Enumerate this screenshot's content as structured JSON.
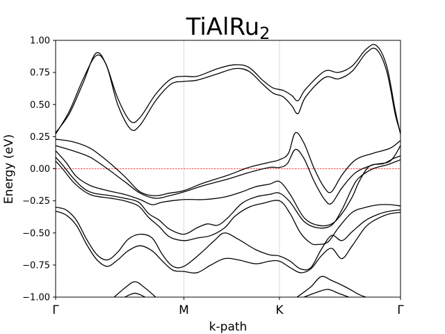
{
  "chart_data": {
    "type": "line",
    "title": "TiAlRu",
    "title_subscript": "2",
    "xlabel": "k-path",
    "ylabel": "Energy (eV)",
    "ylim": [
      -1.0,
      1.0
    ],
    "yticks": [
      "1.00",
      "0.75",
      "0.50",
      "0.25",
      "0.00",
      "−0.25",
      "−0.50",
      "−0.75",
      "−1.00"
    ],
    "ytick_values": [
      1.0,
      0.75,
      0.5,
      0.25,
      0.0,
      -0.25,
      -0.5,
      -0.75,
      -1.0
    ],
    "kpoints": [
      {
        "label": "Γ",
        "x": 0.0
      },
      {
        "label": "M",
        "x": 0.372
      },
      {
        "label": "K",
        "x": 0.649
      },
      {
        "label": "Γ",
        "x": 1.0
      }
    ],
    "xlim": [
      0.0,
      1.0
    ],
    "grid": "vertical lines at high-symmetry points",
    "fermi_level": {
      "y": 0.0,
      "color": "#ff0000",
      "style": "dashed"
    },
    "line_color": "#000000",
    "series": [
      {
        "values": [
          [
            0.0,
            0.27
          ],
          [
            0.04,
            0.45
          ],
          [
            0.08,
            0.7
          ],
          [
            0.117,
            0.88
          ],
          [
            0.145,
            0.82
          ],
          [
            0.18,
            0.55
          ],
          [
            0.217,
            0.37
          ],
          [
            0.245,
            0.4
          ],
          [
            0.29,
            0.58
          ],
          [
            0.335,
            0.7
          ],
          [
            0.372,
            0.72
          ],
          [
            0.41,
            0.72
          ],
          [
            0.47,
            0.78
          ],
          [
            0.52,
            0.81
          ],
          [
            0.56,
            0.79
          ],
          [
            0.6,
            0.69
          ],
          [
            0.63,
            0.63
          ],
          [
            0.66,
            0.61
          ],
          [
            0.685,
            0.57
          ],
          [
            0.703,
            0.53
          ],
          [
            0.725,
            0.62
          ],
          [
            0.78,
            0.76
          ],
          [
            0.82,
            0.75
          ],
          [
            0.86,
            0.8
          ],
          [
            0.9,
            0.93
          ],
          [
            0.93,
            0.96
          ],
          [
            0.96,
            0.8
          ],
          [
            0.985,
            0.45
          ],
          [
            1.0,
            0.27
          ]
        ]
      },
      {
        "values": [
          [
            0.0,
            0.28
          ],
          [
            0.04,
            0.43
          ],
          [
            0.08,
            0.67
          ],
          [
            0.117,
            0.9
          ],
          [
            0.148,
            0.8
          ],
          [
            0.18,
            0.5
          ],
          [
            0.217,
            0.31
          ],
          [
            0.245,
            0.34
          ],
          [
            0.29,
            0.53
          ],
          [
            0.335,
            0.66
          ],
          [
            0.372,
            0.68
          ],
          [
            0.41,
            0.69
          ],
          [
            0.47,
            0.74
          ],
          [
            0.52,
            0.78
          ],
          [
            0.56,
            0.76
          ],
          [
            0.6,
            0.66
          ],
          [
            0.63,
            0.59
          ],
          [
            0.66,
            0.56
          ],
          [
            0.685,
            0.49
          ],
          [
            0.703,
            0.43
          ],
          [
            0.725,
            0.56
          ],
          [
            0.78,
            0.71
          ],
          [
            0.82,
            0.7
          ],
          [
            0.86,
            0.76
          ],
          [
            0.9,
            0.9
          ],
          [
            0.93,
            0.93
          ],
          [
            0.96,
            0.76
          ],
          [
            0.985,
            0.42
          ],
          [
            1.0,
            0.28
          ]
        ]
      },
      {
        "values": [
          [
            0.0,
            0.23
          ],
          [
            0.05,
            0.21
          ],
          [
            0.1,
            0.16
          ],
          [
            0.15,
            0.06
          ],
          [
            0.2,
            -0.06
          ],
          [
            0.245,
            -0.18
          ],
          [
            0.29,
            -0.21
          ],
          [
            0.33,
            -0.19
          ],
          [
            0.372,
            -0.17
          ],
          [
            0.43,
            -0.11
          ],
          [
            0.5,
            -0.05
          ],
          [
            0.56,
            0.01
          ],
          [
            0.62,
            0.05
          ],
          [
            0.649,
            0.07
          ],
          [
            0.675,
            0.12
          ],
          [
            0.695,
            0.28
          ],
          [
            0.72,
            0.2
          ],
          [
            0.75,
            0.0
          ],
          [
            0.78,
            -0.15
          ],
          [
            0.8,
            -0.18
          ],
          [
            0.83,
            -0.05
          ],
          [
            0.87,
            0.07
          ],
          [
            0.92,
            0.12
          ],
          [
            0.97,
            0.16
          ],
          [
            1.0,
            0.22
          ]
        ]
      },
      {
        "values": [
          [
            0.0,
            0.18
          ],
          [
            0.05,
            0.14
          ],
          [
            0.1,
            0.09
          ],
          [
            0.15,
            0.0
          ],
          [
            0.2,
            -0.1
          ],
          [
            0.245,
            -0.19
          ],
          [
            0.29,
            -0.23
          ],
          [
            0.33,
            -0.21
          ],
          [
            0.372,
            -0.18
          ],
          [
            0.43,
            -0.13
          ],
          [
            0.5,
            -0.08
          ],
          [
            0.56,
            -0.03
          ],
          [
            0.62,
            0.01
          ],
          [
            0.649,
            0.01
          ],
          [
            0.672,
            0.04
          ],
          [
            0.695,
            0.15
          ],
          [
            0.72,
            0.08
          ],
          [
            0.75,
            -0.1
          ],
          [
            0.78,
            -0.24
          ],
          [
            0.8,
            -0.27
          ],
          [
            0.83,
            -0.15
          ],
          [
            0.87,
            -0.03
          ],
          [
            0.92,
            0.03
          ],
          [
            0.97,
            0.06
          ],
          [
            1.0,
            0.18
          ]
        ]
      },
      {
        "values": [
          [
            0.0,
            0.14
          ],
          [
            0.03,
            0.05
          ],
          [
            0.06,
            -0.06
          ],
          [
            0.1,
            -0.13
          ],
          [
            0.15,
            -0.17
          ],
          [
            0.2,
            -0.2
          ],
          [
            0.245,
            -0.24
          ],
          [
            0.28,
            -0.28
          ],
          [
            0.31,
            -0.26
          ],
          [
            0.372,
            -0.24
          ],
          [
            0.43,
            -0.24
          ],
          [
            0.49,
            -0.22
          ],
          [
            0.54,
            -0.18
          ],
          [
            0.58,
            -0.14
          ],
          [
            0.62,
            -0.12
          ],
          [
            0.649,
            -0.1
          ],
          [
            0.68,
            -0.2
          ],
          [
            0.72,
            -0.38
          ],
          [
            0.76,
            -0.44
          ],
          [
            0.8,
            -0.43
          ],
          [
            0.83,
            -0.35
          ],
          [
            0.86,
            -0.22
          ],
          [
            0.88,
            -0.1
          ],
          [
            0.91,
            0.02
          ],
          [
            0.95,
            0.04
          ],
          [
            0.98,
            0.08
          ],
          [
            1.0,
            0.1
          ]
        ]
      },
      {
        "values": [
          [
            0.0,
            0.09
          ],
          [
            0.02,
            0.03
          ],
          [
            0.05,
            -0.07
          ],
          [
            0.08,
            -0.15
          ],
          [
            0.11,
            -0.19
          ],
          [
            0.16,
            -0.21
          ],
          [
            0.2,
            -0.23
          ],
          [
            0.24,
            -0.26
          ],
          [
            0.27,
            -0.35
          ],
          [
            0.3,
            -0.4
          ],
          [
            0.33,
            -0.47
          ],
          [
            0.372,
            -0.51
          ],
          [
            0.41,
            -0.46
          ],
          [
            0.44,
            -0.43
          ],
          [
            0.47,
            -0.44
          ],
          [
            0.5,
            -0.38
          ],
          [
            0.54,
            -0.27
          ],
          [
            0.58,
            -0.22
          ],
          [
            0.62,
            -0.2
          ],
          [
            0.649,
            -0.19
          ],
          [
            0.68,
            -0.26
          ],
          [
            0.72,
            -0.41
          ],
          [
            0.76,
            -0.46
          ],
          [
            0.8,
            -0.44
          ],
          [
            0.83,
            -0.32
          ],
          [
            0.86,
            -0.15
          ],
          [
            0.88,
            -0.07
          ],
          [
            0.92,
            0.0
          ],
          [
            0.96,
            0.03
          ],
          [
            1.0,
            0.07
          ]
        ]
      },
      {
        "values": [
          [
            0.0,
            0.06
          ],
          [
            0.02,
            0.0
          ],
          [
            0.05,
            -0.1
          ],
          [
            0.08,
            -0.17
          ],
          [
            0.11,
            -0.21
          ],
          [
            0.16,
            -0.23
          ],
          [
            0.2,
            -0.25
          ],
          [
            0.24,
            -0.29
          ],
          [
            0.27,
            -0.38
          ],
          [
            0.3,
            -0.45
          ],
          [
            0.33,
            -0.53
          ],
          [
            0.372,
            -0.56
          ],
          [
            0.41,
            -0.54
          ],
          [
            0.45,
            -0.52
          ],
          [
            0.49,
            -0.46
          ],
          [
            0.52,
            -0.37
          ],
          [
            0.56,
            -0.3
          ],
          [
            0.6,
            -0.27
          ],
          [
            0.649,
            -0.25
          ],
          [
            0.68,
            -0.35
          ],
          [
            0.71,
            -0.5
          ],
          [
            0.74,
            -0.58
          ],
          [
            0.76,
            -0.59
          ],
          [
            0.79,
            -0.57
          ],
          [
            0.82,
            -0.46
          ],
          [
            0.86,
            -0.34
          ],
          [
            0.9,
            -0.3
          ],
          [
            0.94,
            -0.28
          ],
          [
            0.97,
            -0.28
          ],
          [
            1.0,
            -0.29
          ]
        ]
      },
      {
        "values": [
          [
            0.0,
            -0.3
          ],
          [
            0.03,
            -0.32
          ],
          [
            0.06,
            -0.4
          ],
          [
            0.09,
            -0.55
          ],
          [
            0.12,
            -0.67
          ],
          [
            0.15,
            -0.71
          ],
          [
            0.18,
            -0.65
          ],
          [
            0.21,
            -0.55
          ],
          [
            0.245,
            -0.51
          ],
          [
            0.28,
            -0.54
          ],
          [
            0.31,
            -0.67
          ],
          [
            0.34,
            -0.76
          ],
          [
            0.372,
            -0.76
          ],
          [
            0.42,
            -0.66
          ],
          [
            0.46,
            -0.56
          ],
          [
            0.49,
            -0.5
          ],
          [
            0.53,
            -0.55
          ],
          [
            0.58,
            -0.63
          ],
          [
            0.62,
            -0.67
          ],
          [
            0.649,
            -0.68
          ],
          [
            0.68,
            -0.72
          ],
          [
            0.71,
            -0.78
          ],
          [
            0.74,
            -0.77
          ],
          [
            0.77,
            -0.63
          ],
          [
            0.8,
            -0.52
          ],
          [
            0.83,
            -0.56
          ],
          [
            0.86,
            -0.49
          ],
          [
            0.9,
            -0.4
          ],
          [
            0.94,
            -0.35
          ],
          [
            0.97,
            -0.33
          ],
          [
            1.0,
            -0.32
          ]
        ]
      },
      {
        "values": [
          [
            0.0,
            -0.33
          ],
          [
            0.03,
            -0.36
          ],
          [
            0.06,
            -0.44
          ],
          [
            0.09,
            -0.59
          ],
          [
            0.12,
            -0.71
          ],
          [
            0.15,
            -0.76
          ],
          [
            0.18,
            -0.71
          ],
          [
            0.21,
            -0.64
          ],
          [
            0.245,
            -0.6
          ],
          [
            0.28,
            -0.64
          ],
          [
            0.31,
            -0.72
          ],
          [
            0.34,
            -0.79
          ],
          [
            0.372,
            -0.8
          ],
          [
            0.41,
            -0.81
          ],
          [
            0.45,
            -0.75
          ],
          [
            0.49,
            -0.7
          ],
          [
            0.53,
            -0.71
          ],
          [
            0.58,
            -0.74
          ],
          [
            0.62,
            -0.72
          ],
          [
            0.649,
            -0.72
          ],
          [
            0.68,
            -0.77
          ],
          [
            0.71,
            -0.81
          ],
          [
            0.74,
            -0.78
          ],
          [
            0.77,
            -0.68
          ],
          [
            0.8,
            -0.62
          ],
          [
            0.83,
            -0.7
          ],
          [
            0.86,
            -0.6
          ],
          [
            0.9,
            -0.45
          ],
          [
            0.94,
            -0.38
          ],
          [
            0.97,
            -0.35
          ],
          [
            1.0,
            -0.34
          ]
        ]
      },
      {
        "values": [
          [
            0.17,
            -1.0
          ],
          [
            0.2,
            -0.93
          ],
          [
            0.23,
            -0.88
          ],
          [
            0.26,
            -0.93
          ],
          [
            0.29,
            -1.0
          ]
        ]
      },
      {
        "values": [
          [
            0.2,
            -1.0
          ],
          [
            0.23,
            -0.97
          ],
          [
            0.26,
            -1.0
          ]
        ]
      },
      {
        "values": [
          [
            0.7,
            -1.0
          ],
          [
            0.74,
            -0.92
          ],
          [
            0.77,
            -0.84
          ],
          [
            0.8,
            -0.87
          ],
          [
            0.84,
            -0.92
          ],
          [
            0.88,
            -0.98
          ],
          [
            0.9,
            -1.0
          ]
        ]
      },
      {
        "values": [
          [
            0.72,
            -1.0
          ],
          [
            0.76,
            -0.96
          ],
          [
            0.79,
            -0.94
          ],
          [
            0.82,
            -0.97
          ],
          [
            0.85,
            -1.0
          ]
        ]
      }
    ]
  }
}
